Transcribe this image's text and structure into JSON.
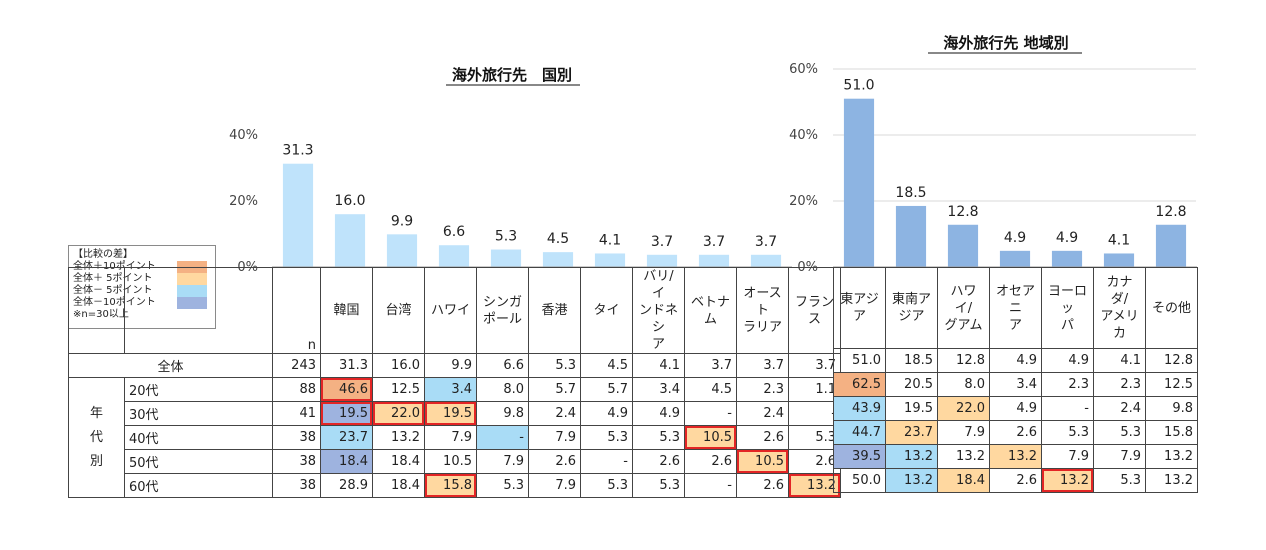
{
  "chart_data": [
    {
      "type": "bar",
      "title": "海外旅行先　国別",
      "categories": [
        "韓国",
        "台湾",
        "ハワイ",
        "シンガポール",
        "香港",
        "タイ",
        "バリ/インドネシア",
        "ベトナム",
        "オーストラリア",
        "フランス"
      ],
      "category_labels": [
        [
          "韓国"
        ],
        [
          "台湾"
        ],
        [
          "ハワイ"
        ],
        [
          "シンガ",
          "ポール"
        ],
        [
          "香港"
        ],
        [
          "タイ"
        ],
        [
          "バリ/イ",
          "ンドネシ",
          "ア"
        ],
        [
          "ベトナム"
        ],
        [
          "オースト",
          "ラリア"
        ],
        [
          "フランス"
        ]
      ],
      "values": [
        31.3,
        16.0,
        9.9,
        6.6,
        5.3,
        4.5,
        4.1,
        3.7,
        3.7,
        3.7
      ],
      "value_labels": [
        "31.3",
        "16.0",
        "9.9",
        "6.6",
        "5.3",
        "4.5",
        "4.1",
        "3.7",
        "3.7",
        "3.7"
      ],
      "yticks": [
        "0%",
        "20%",
        "40%"
      ],
      "ylim": [
        0,
        40
      ],
      "bar_color": "#bfe3fb",
      "table": {
        "n_label": "n",
        "row_group_label": "年代別",
        "rows": [
          {
            "label": "全体",
            "n": "243",
            "values": [
              "31.3",
              "16.0",
              "9.9",
              "6.6",
              "5.3",
              "4.5",
              "4.1",
              "3.7",
              "3.7",
              "3.7"
            ]
          },
          {
            "label": "20代",
            "n": "88",
            "values": [
              "46.6",
              "12.5",
              "3.4",
              "8.0",
              "5.7",
              "5.7",
              "3.4",
              "4.5",
              "2.3",
              "1.1"
            ]
          },
          {
            "label": "30代",
            "n": "41",
            "values": [
              "19.5",
              "22.0",
              "19.5",
              "9.8",
              "2.4",
              "4.9",
              "4.9",
              "-",
              "2.4",
              "-"
            ]
          },
          {
            "label": "40代",
            "n": "38",
            "values": [
              "23.7",
              "13.2",
              "7.9",
              "-",
              "7.9",
              "5.3",
              "5.3",
              "10.5",
              "2.6",
              "5.3"
            ]
          },
          {
            "label": "50代",
            "n": "38",
            "values": [
              "18.4",
              "18.4",
              "10.5",
              "7.9",
              "2.6",
              "-",
              "2.6",
              "2.6",
              "10.5",
              "2.6"
            ]
          },
          {
            "label": "60代",
            "n": "38",
            "values": [
              "28.9",
              "18.4",
              "15.8",
              "5.3",
              "7.9",
              "5.3",
              "5.3",
              "-",
              "2.6",
              "13.2"
            ]
          }
        ],
        "highlights": [
          [
            "",
            "",
            "",
            "",
            "",
            "",
            "",
            "",
            "",
            ""
          ],
          [
            "p10",
            "",
            "m5",
            "",
            "",
            "",
            "",
            "",
            "",
            ""
          ],
          [
            "m10",
            "p5",
            "p5",
            "",
            "",
            "",
            "",
            "",
            "",
            ""
          ],
          [
            "m5",
            "",
            "",
            "m5",
            "",
            "",
            "",
            "p5",
            "",
            ""
          ],
          [
            "m10",
            "",
            "",
            "",
            "",
            "",
            "",
            "",
            "p5",
            ""
          ],
          [
            "",
            "",
            "p5",
            "",
            "",
            "",
            "",
            "",
            "",
            "p5"
          ]
        ],
        "outlined": [
          [
            false,
            false,
            false,
            false,
            false,
            false,
            false,
            false,
            false,
            false
          ],
          [
            true,
            false,
            false,
            false,
            false,
            false,
            false,
            false,
            false,
            false
          ],
          [
            true,
            true,
            true,
            false,
            false,
            false,
            false,
            false,
            false,
            false
          ],
          [
            false,
            false,
            false,
            false,
            false,
            false,
            false,
            true,
            false,
            false
          ],
          [
            false,
            false,
            false,
            false,
            false,
            false,
            false,
            false,
            true,
            false
          ],
          [
            false,
            false,
            true,
            false,
            false,
            false,
            false,
            false,
            false,
            true
          ]
        ]
      }
    },
    {
      "type": "bar",
      "title": "海外旅行先 地域別",
      "categories": [
        "東アジア",
        "東南アジア",
        "ハワイ/グアム",
        "オセアニア",
        "ヨーロッパ",
        "カナダ/アメリカ",
        "その他"
      ],
      "category_labels": [
        [
          "東アジア"
        ],
        [
          "東南ア",
          "ジア"
        ],
        [
          "ハワイ/",
          "グアム"
        ],
        [
          "オセアニ",
          "ア"
        ],
        [
          "ヨーロッ",
          "パ"
        ],
        [
          "カナダ/",
          "アメリカ"
        ],
        [
          "その他"
        ]
      ],
      "values": [
        51.0,
        18.5,
        12.8,
        4.9,
        4.9,
        4.1,
        12.8
      ],
      "value_labels": [
        "51.0",
        "18.5",
        "12.8",
        "4.9",
        "4.9",
        "4.1",
        "12.8"
      ],
      "yticks": [
        "0%",
        "20%",
        "40%",
        "60%"
      ],
      "ylim": [
        0,
        60
      ],
      "bar_color": "#8db4e2",
      "table": {
        "rows": [
          {
            "label": "全体",
            "values": [
              "51.0",
              "18.5",
              "12.8",
              "4.9",
              "4.9",
              "4.1",
              "12.8"
            ]
          },
          {
            "label": "20代",
            "values": [
              "62.5",
              "20.5",
              "8.0",
              "3.4",
              "2.3",
              "2.3",
              "12.5"
            ]
          },
          {
            "label": "30代",
            "values": [
              "43.9",
              "19.5",
              "22.0",
              "4.9",
              "-",
              "2.4",
              "9.8"
            ]
          },
          {
            "label": "40代",
            "values": [
              "44.7",
              "23.7",
              "7.9",
              "2.6",
              "5.3",
              "5.3",
              "15.8"
            ]
          },
          {
            "label": "50代",
            "values": [
              "39.5",
              "13.2",
              "13.2",
              "13.2",
              "7.9",
              "7.9",
              "13.2"
            ]
          },
          {
            "label": "60代",
            "values": [
              "50.0",
              "13.2",
              "18.4",
              "2.6",
              "13.2",
              "5.3",
              "13.2"
            ]
          }
        ],
        "highlights": [
          [
            "",
            "",
            "",
            "",
            "",
            "",
            ""
          ],
          [
            "p10",
            "",
            "",
            "",
            "",
            "",
            ""
          ],
          [
            "m5",
            "",
            "p5",
            "",
            "",
            "",
            ""
          ],
          [
            "m5",
            "p5",
            "",
            "",
            "",
            "",
            ""
          ],
          [
            "m10",
            "m5",
            "",
            "p5",
            "",
            "",
            ""
          ],
          [
            "",
            "m5",
            "p5",
            "",
            "p5",
            "",
            ""
          ]
        ],
        "outlined": [
          [
            false,
            false,
            false,
            false,
            false,
            false,
            false
          ],
          [
            false,
            false,
            false,
            false,
            false,
            false,
            false
          ],
          [
            false,
            false,
            false,
            false,
            false,
            false,
            false
          ],
          [
            false,
            false,
            false,
            false,
            false,
            false,
            false
          ],
          [
            false,
            false,
            false,
            false,
            false,
            false,
            false
          ],
          [
            false,
            false,
            false,
            false,
            true,
            false,
            false
          ]
        ]
      }
    }
  ],
  "legend": {
    "title": "【比較の差】",
    "items": [
      {
        "label": "全体＋10ポイント",
        "color": "#f4b183"
      },
      {
        "label": "全体＋ 5ポイント",
        "color": "#ffd8a0"
      },
      {
        "label": "全体－ 5ポイント",
        "color": "#a9dcf6"
      },
      {
        "label": "全体－10ポイント",
        "color": "#9eb3df"
      }
    ],
    "note": "※n=30以上"
  }
}
